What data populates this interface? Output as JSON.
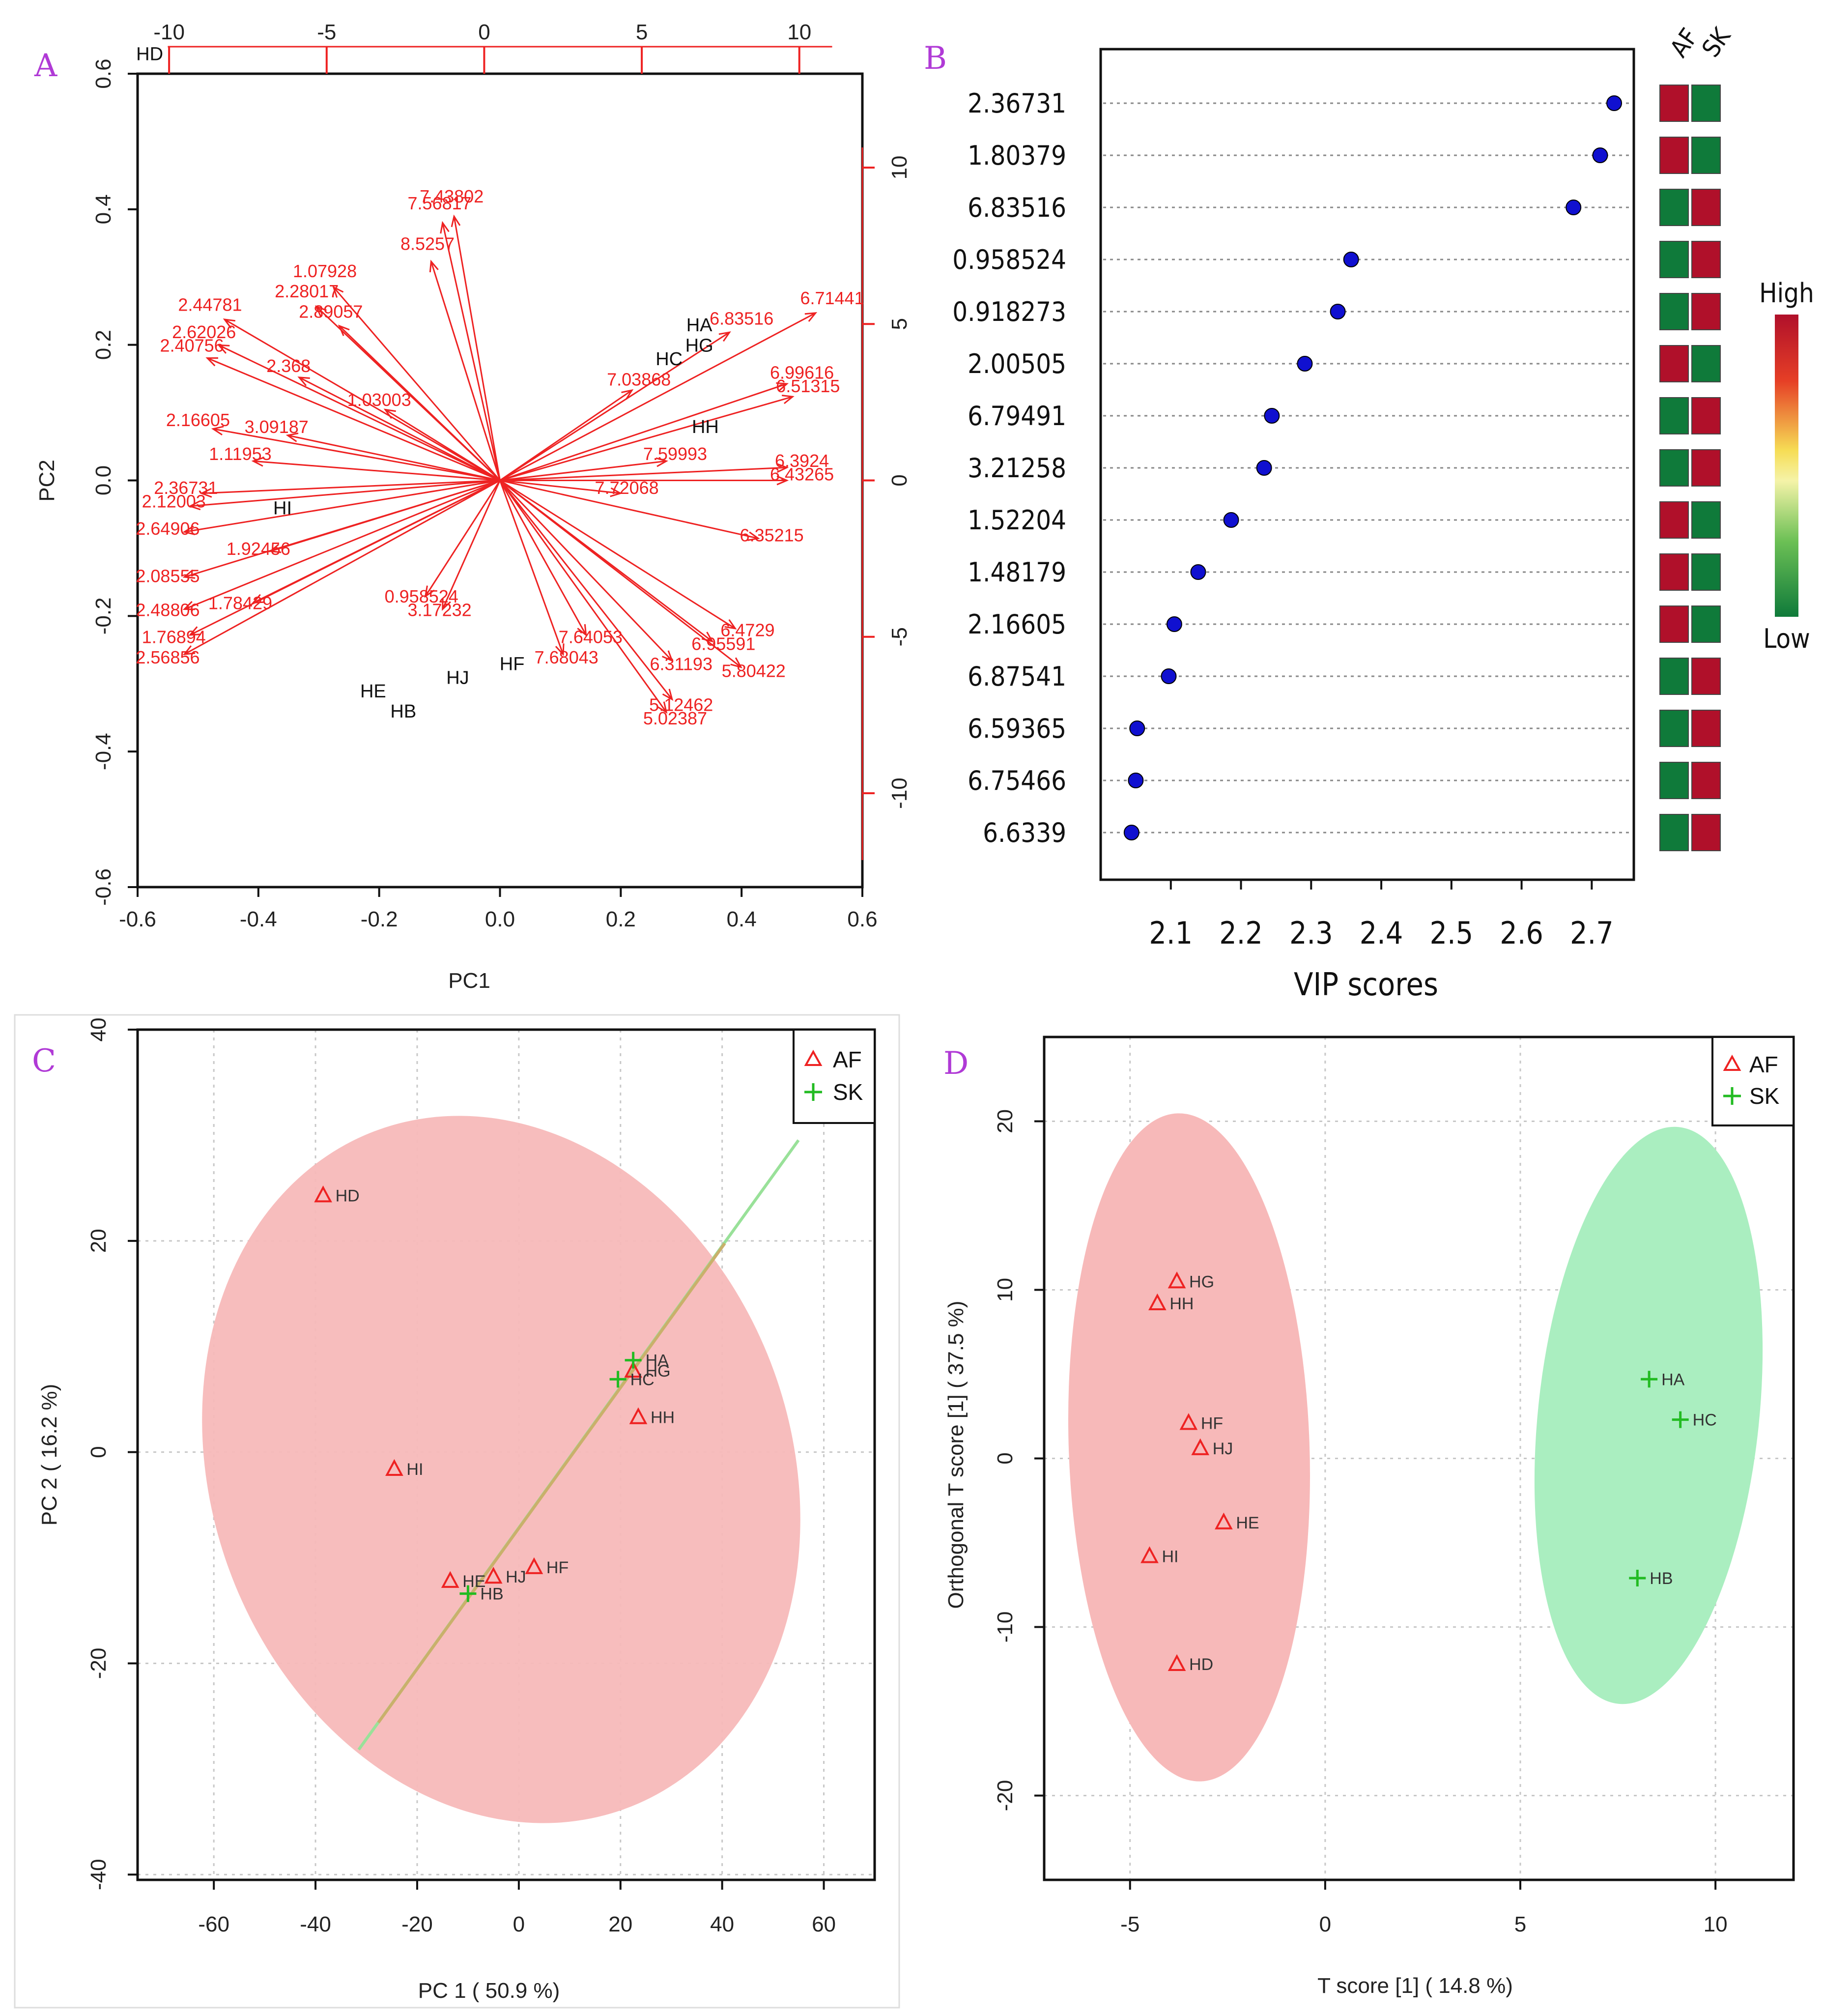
{
  "panels": {
    "A": "A",
    "B": "B",
    "C": "C",
    "D": "D"
  },
  "colors": {
    "red": "#ee2222",
    "green": "#22bb22",
    "heat_high": "#b0102a",
    "heat_low": "#0f7a3a",
    "blue_dot": "#1010d0",
    "ellipse_red": "#f7b9b9",
    "ellipse_green": "#aaeec0"
  },
  "chart_data": [
    {
      "id": "A",
      "type": "scatter",
      "title": "",
      "xlabel": "PC1",
      "ylabel": "PC2",
      "xlim": [
        -0.6,
        0.6
      ],
      "ylim": [
        -0.6,
        0.6
      ],
      "x_ticks": [
        "-0.6",
        "-0.4",
        "-0.2",
        "0.0",
        "0.2",
        "0.4",
        "0.6"
      ],
      "y_ticks": [
        "-0.6",
        "-0.4",
        "-0.2",
        "0.0",
        "0.2",
        "0.4",
        "0.6"
      ],
      "top_ticks": [
        "-10",
        "-5",
        "0",
        "5",
        "10"
      ],
      "top_lim": [
        -11,
        12
      ],
      "right_ticks": [
        "-10",
        "-5",
        "0",
        "5",
        "10"
      ],
      "right_lim": [
        -13,
        13
      ],
      "samples": [
        {
          "label": "HD",
          "x": -0.58,
          "y": 0.62
        },
        {
          "label": "HA",
          "x": 0.33,
          "y": 0.22
        },
        {
          "label": "HG",
          "x": 0.33,
          "y": 0.19
        },
        {
          "label": "HC",
          "x": 0.28,
          "y": 0.17
        },
        {
          "label": "HH",
          "x": 0.34,
          "y": 0.07
        },
        {
          "label": "HI",
          "x": -0.36,
          "y": -0.05
        },
        {
          "label": "HE",
          "x": -0.21,
          "y": -0.32
        },
        {
          "label": "HB",
          "x": -0.16,
          "y": -0.35
        },
        {
          "label": "HJ",
          "x": -0.07,
          "y": -0.3
        },
        {
          "label": "HF",
          "x": 0.02,
          "y": -0.28
        }
      ],
      "loadings": [
        {
          "label": "7.43802",
          "x": -0.08,
          "y": 0.41
        },
        {
          "label": "7.56817",
          "x": -0.1,
          "y": 0.4
        },
        {
          "label": "8.5257",
          "x": -0.12,
          "y": 0.34
        },
        {
          "label": "1.07928",
          "x": -0.29,
          "y": 0.3
        },
        {
          "label": "2.28017",
          "x": -0.32,
          "y": 0.27
        },
        {
          "label": "2.89057",
          "x": -0.28,
          "y": 0.24
        },
        {
          "label": "2.44781",
          "x": -0.48,
          "y": 0.25
        },
        {
          "label": "2.62026",
          "x": -0.49,
          "y": 0.21
        },
        {
          "label": "2.40756",
          "x": -0.51,
          "y": 0.19
        },
        {
          "label": "2.368",
          "x": -0.35,
          "y": 0.16
        },
        {
          "label": "1.03003",
          "x": -0.2,
          "y": 0.11
        },
        {
          "label": "2.16605",
          "x": -0.5,
          "y": 0.08
        },
        {
          "label": "3.09187",
          "x": -0.37,
          "y": 0.07
        },
        {
          "label": "1.11953",
          "x": -0.43,
          "y": 0.03
        },
        {
          "label": "2.36731",
          "x": -0.52,
          "y": -0.02
        },
        {
          "label": "2.12003",
          "x": -0.54,
          "y": -0.04
        },
        {
          "label": "2.64906",
          "x": -0.55,
          "y": -0.08
        },
        {
          "label": "1.92456",
          "x": -0.4,
          "y": -0.11
        },
        {
          "label": "2.08555",
          "x": -0.55,
          "y": -0.15
        },
        {
          "label": "1.78429",
          "x": -0.43,
          "y": -0.19
        },
        {
          "label": "2.48806",
          "x": -0.55,
          "y": -0.2
        },
        {
          "label": "1.76894",
          "x": -0.54,
          "y": -0.24
        },
        {
          "label": "2.56856",
          "x": -0.55,
          "y": -0.27
        },
        {
          "label": "0.958524",
          "x": -0.13,
          "y": -0.18
        },
        {
          "label": "3.17232",
          "x": -0.1,
          "y": -0.2
        },
        {
          "label": "6.83516",
          "x": 0.4,
          "y": 0.23
        },
        {
          "label": "6.71441",
          "x": 0.55,
          "y": 0.26
        },
        {
          "label": "6.99616",
          "x": 0.5,
          "y": 0.15
        },
        {
          "label": "6.51315",
          "x": 0.51,
          "y": 0.13
        },
        {
          "label": "7.03868",
          "x": 0.23,
          "y": 0.14
        },
        {
          "label": "7.59993",
          "x": 0.29,
          "y": 0.03
        },
        {
          "label": "6.3924",
          "x": 0.5,
          "y": 0.02
        },
        {
          "label": "6.43265",
          "x": 0.5,
          "y": 0.0
        },
        {
          "label": "7.72068",
          "x": 0.21,
          "y": -0.02
        },
        {
          "label": "6.35215",
          "x": 0.45,
          "y": -0.09
        },
        {
          "label": "7.64053",
          "x": 0.15,
          "y": -0.24
        },
        {
          "label": "7.68043",
          "x": 0.11,
          "y": -0.27
        },
        {
          "label": "6.4729",
          "x": 0.41,
          "y": -0.23
        },
        {
          "label": "6.95591",
          "x": 0.37,
          "y": -0.25
        },
        {
          "label": "6.31193",
          "x": 0.3,
          "y": -0.28
        },
        {
          "label": "5.80422",
          "x": 0.42,
          "y": -0.29
        },
        {
          "label": "5.12462",
          "x": 0.3,
          "y": -0.34
        },
        {
          "label": "5.02387",
          "x": 0.29,
          "y": -0.36
        }
      ]
    },
    {
      "id": "B",
      "type": "scatter",
      "title": "",
      "xlabel": "VIP scores",
      "ylabel": "",
      "xlim": [
        2.0,
        2.76
      ],
      "x_ticks": [
        "2.1",
        "2.2",
        "2.3",
        "2.4",
        "2.5",
        "2.6",
        "2.7"
      ],
      "categories": [
        "2.36731",
        "1.80379",
        "6.83516",
        "0.958524",
        "0.918273",
        "2.00505",
        "6.79491",
        "3.21258",
        "1.52204",
        "1.48179",
        "2.16605",
        "6.87541",
        "6.59365",
        "6.75466",
        "6.6339"
      ],
      "values": [
        2.732,
        2.712,
        2.674,
        2.357,
        2.338,
        2.291,
        2.244,
        2.233,
        2.186,
        2.139,
        2.105,
        2.097,
        2.052,
        2.05,
        2.044
      ],
      "heatmap_columns": [
        "AF",
        "SK"
      ],
      "heatmap": [
        [
          "high",
          "low"
        ],
        [
          "high",
          "low"
        ],
        [
          "low",
          "high"
        ],
        [
          "low",
          "high"
        ],
        [
          "low",
          "high"
        ],
        [
          "high",
          "low"
        ],
        [
          "low",
          "high"
        ],
        [
          "low",
          "high"
        ],
        [
          "high",
          "low"
        ],
        [
          "high",
          "low"
        ],
        [
          "high",
          "low"
        ],
        [
          "low",
          "high"
        ],
        [
          "low",
          "high"
        ],
        [
          "low",
          "high"
        ],
        [
          "low",
          "high"
        ]
      ],
      "scale_high": "High",
      "scale_low": "Low"
    },
    {
      "id": "C",
      "type": "scatter",
      "title": "",
      "xlabel": "PC 1 ( 50.9 %)",
      "ylabel": "PC 2 ( 16.2 %)",
      "xlim": [
        -75,
        70
      ],
      "ylim": [
        -40.5,
        40
      ],
      "x_ticks": [
        "-60",
        "-40",
        "-20",
        "0",
        "20",
        "40",
        "60"
      ],
      "y_ticks": [
        "-40",
        "-20",
        "0",
        "20",
        "40"
      ],
      "legend": [
        {
          "name": "AF",
          "marker": "triangle"
        },
        {
          "name": "SK",
          "marker": "plus"
        }
      ],
      "series": [
        {
          "name": "AF",
          "points": [
            {
              "label": "HD",
              "x": -38.5,
              "y": 24.3
            },
            {
              "label": "HI",
              "x": -24.5,
              "y": -1.6
            },
            {
              "label": "HH",
              "x": 23.5,
              "y": 3.3
            },
            {
              "label": "HG",
              "x": 22.5,
              "y": 7.7
            },
            {
              "label": "HE",
              "x": -13.5,
              "y": -12.2
            },
            {
              "label": "HJ",
              "x": -5,
              "y": -11.8
            },
            {
              "label": "HF",
              "x": 3,
              "y": -10.9
            }
          ]
        },
        {
          "name": "SK",
          "points": [
            {
              "label": "HA",
              "x": 22.5,
              "y": 8.7
            },
            {
              "label": "HC",
              "x": 19.5,
              "y": 6.9
            },
            {
              "label": "HB",
              "x": -10,
              "y": -13.4
            }
          ]
        }
      ]
    },
    {
      "id": "D",
      "type": "scatter",
      "title": "",
      "xlabel": "T score [1] ( 14.8 %)",
      "ylabel": "Orthogonal T score [1] ( 37.5 %)",
      "xlim": [
        -7.2,
        12
      ],
      "ylim": [
        -25,
        25
      ],
      "x_ticks": [
        "-5",
        "0",
        "5",
        "10"
      ],
      "y_ticks": [
        "-20",
        "-10",
        "0",
        "10",
        "20"
      ],
      "legend": [
        {
          "name": "AF",
          "marker": "triangle"
        },
        {
          "name": "SK",
          "marker": "plus"
        }
      ],
      "series": [
        {
          "name": "AF",
          "points": [
            {
              "label": "HG",
              "x": -3.8,
              "y": 10.5
            },
            {
              "label": "HH",
              "x": -4.3,
              "y": 9.2
            },
            {
              "label": "HF",
              "x": -3.5,
              "y": 2.1
            },
            {
              "label": "HJ",
              "x": -3.2,
              "y": 0.6
            },
            {
              "label": "HE",
              "x": -2.6,
              "y": -3.8
            },
            {
              "label": "HI",
              "x": -4.5,
              "y": -5.8
            },
            {
              "label": "HD",
              "x": -3.8,
              "y": -12.2
            }
          ]
        },
        {
          "name": "SK",
          "points": [
            {
              "label": "HA",
              "x": 8.3,
              "y": 4.7
            },
            {
              "label": "HC",
              "x": 9.1,
              "y": 2.3
            },
            {
              "label": "HB",
              "x": 8,
              "y": -7.1
            }
          ]
        }
      ]
    }
  ]
}
